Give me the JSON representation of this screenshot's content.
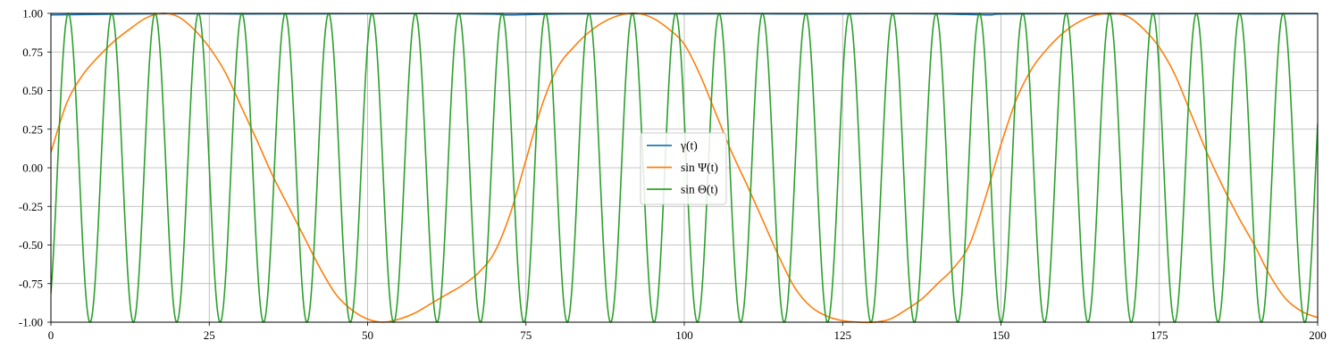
{
  "chart_data": {
    "type": "line",
    "title": "",
    "xlabel": "",
    "ylabel": "",
    "xlim": [
      0,
      200
    ],
    "ylim": [
      -1.0,
      1.0
    ],
    "xticks": [
      0,
      25,
      50,
      75,
      100,
      125,
      150,
      175,
      200
    ],
    "xtick_labels": [
      "0",
      "25",
      "50",
      "75",
      "100",
      "125",
      "150",
      "175",
      "200"
    ],
    "yticks": [
      -1.0,
      -0.75,
      -0.5,
      -0.25,
      0.0,
      0.25,
      0.5,
      0.75,
      1.0
    ],
    "ytick_labels": [
      "-1.00",
      "-0.75",
      "-0.50",
      "-0.25",
      "0.00",
      "0.25",
      "0.50",
      "0.75",
      "1.00"
    ],
    "grid": true,
    "legend_position": "center",
    "series": [
      {
        "name": "γ(t)",
        "color": "#1f77b4",
        "x": [
          0,
          10,
          20,
          30,
          40,
          50,
          60,
          70,
          72,
          80,
          90,
          100,
          110,
          120,
          130,
          140,
          148,
          150,
          160,
          170,
          180,
          190,
          200
        ],
        "y": [
          0.99,
          0.995,
          0.998,
          0.996,
          0.997,
          0.998,
          0.999,
          0.995,
          0.99,
          0.996,
          0.998,
          0.997,
          0.998,
          0.996,
          0.998,
          0.997,
          0.99,
          0.996,
          0.998,
          0.997,
          0.998,
          0.997,
          0.998
        ]
      },
      {
        "name": "sin Ψ(t)",
        "color": "#ff7f0e",
        "x": [
          0,
          2.5,
          5,
          7.5,
          10,
          12.5,
          15,
          17.5,
          20,
          22.5,
          25,
          27.5,
          30,
          32.5,
          35,
          37.5,
          40,
          42.5,
          45,
          47.5,
          50,
          52.5,
          55,
          57.5,
          60,
          62.5,
          65,
          67.5,
          70,
          72.5,
          75,
          77.5,
          80,
          82.5,
          85,
          87.5,
          90,
          92.5,
          95,
          97.5,
          100,
          102.5,
          105,
          107.5,
          110,
          112.5,
          115,
          117.5,
          120,
          122.5,
          125,
          127.5,
          130,
          132.5,
          135,
          137.5,
          140,
          142.5,
          145,
          147.5,
          150,
          152.5,
          155,
          157.5,
          160,
          162.5,
          165,
          167.5,
          170,
          172.5,
          175,
          177.5,
          180,
          182.5,
          185,
          187.5,
          190,
          192.5,
          195,
          197.5,
          200
        ],
        "y": [
          0.1,
          0.42,
          0.6,
          0.72,
          0.82,
          0.9,
          0.97,
          1.0,
          0.98,
          0.9,
          0.78,
          0.62,
          0.4,
          0.18,
          -0.05,
          -0.25,
          -0.45,
          -0.65,
          -0.82,
          -0.92,
          -0.98,
          -1.0,
          -0.98,
          -0.94,
          -0.88,
          -0.82,
          -0.76,
          -0.68,
          -0.55,
          -0.3,
          0.05,
          0.4,
          0.65,
          0.78,
          0.88,
          0.95,
          0.99,
          1.0,
          0.97,
          0.9,
          0.8,
          0.6,
          0.35,
          0.1,
          -0.12,
          -0.35,
          -0.58,
          -0.78,
          -0.9,
          -0.96,
          -0.99,
          -1.0,
          -1.0,
          -0.98,
          -0.92,
          -0.85,
          -0.75,
          -0.65,
          -0.5,
          -0.2,
          0.15,
          0.45,
          0.65,
          0.78,
          0.88,
          0.95,
          0.99,
          1.0,
          0.98,
          0.9,
          0.78,
          0.6,
          0.35,
          0.1,
          -0.12,
          -0.32,
          -0.5,
          -0.7,
          -0.85,
          -0.93,
          -0.97
        ]
      },
      {
        "name": "sin Θ(t)",
        "color": "#2ca02c",
        "function": "sin",
        "period": 6.85,
        "phase": -0.95,
        "amplitude": 1.0,
        "x_range": [
          0,
          200
        ]
      }
    ]
  }
}
